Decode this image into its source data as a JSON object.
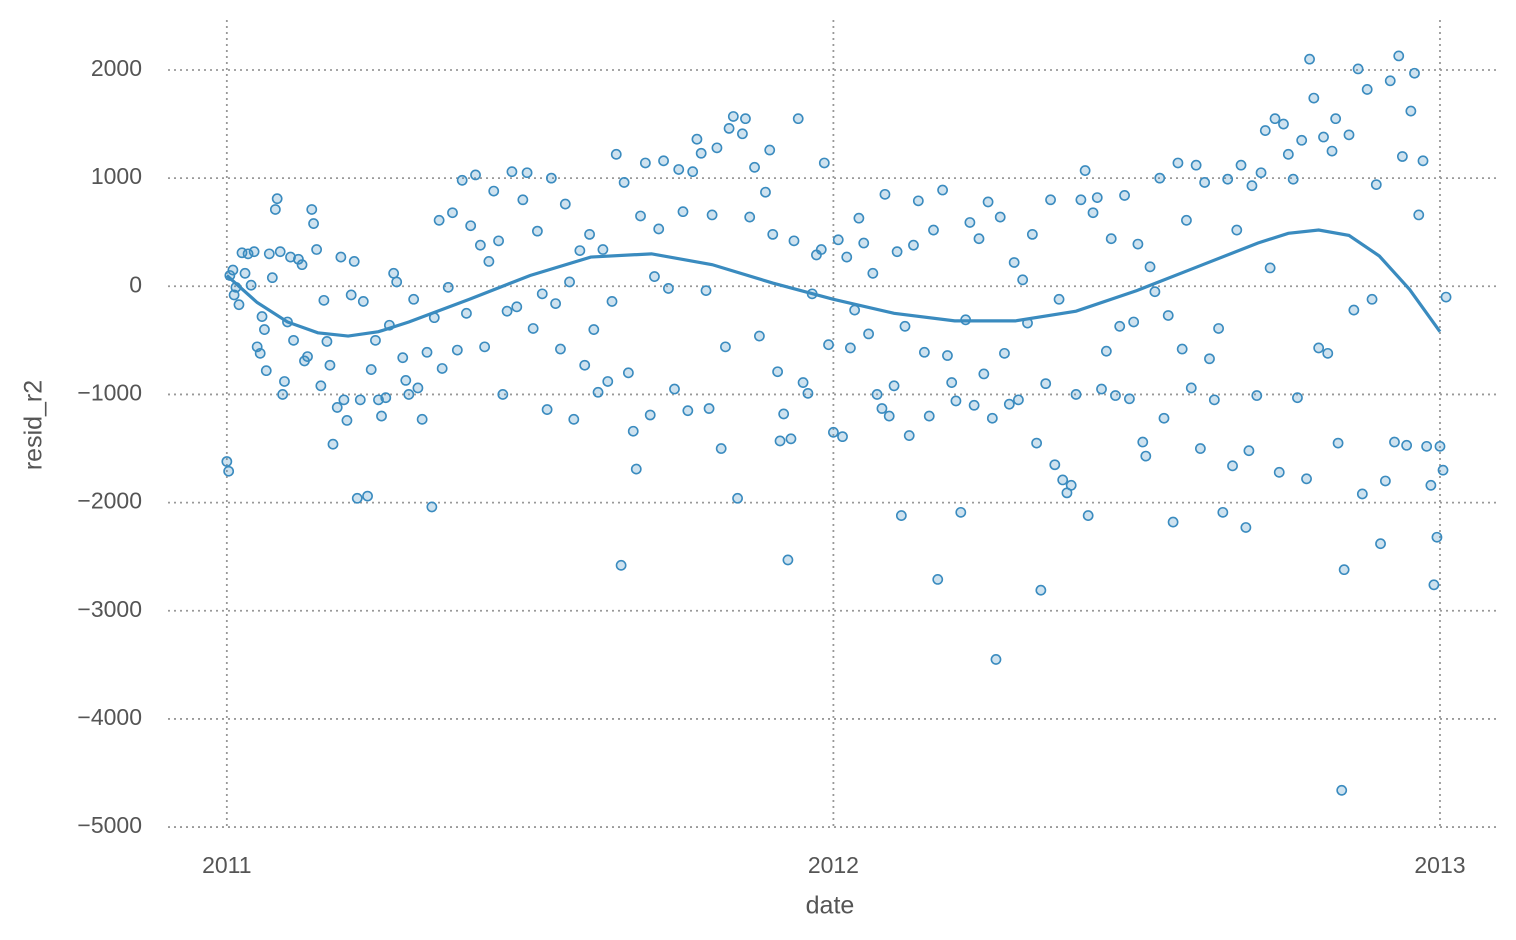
{
  "chart_data": {
    "type": "scatter",
    "x_label": "date",
    "y_label": "resid_r2",
    "xlim": [
      2010.903,
      2013.094
    ],
    "ylim": [
      -5027,
      2462
    ],
    "xticks": [
      2011,
      2012,
      2013
    ],
    "yticks": [
      {
        "value": -5000,
        "label": "−5000"
      },
      {
        "value": -4000,
        "label": "−4000"
      },
      {
        "value": -3000,
        "label": "−3000"
      },
      {
        "value": -2000,
        "label": "−2000"
      },
      {
        "value": -1000,
        "label": "−1000"
      },
      0,
      1000,
      2000
    ],
    "grid": true,
    "series": [
      {
        "type": "scatter",
        "color": "#3a8bbf",
        "x": [
          2011.0,
          2011.003,
          2011.005,
          2011.01,
          2011.012,
          2011.015,
          2011.02,
          2011.025,
          2011.03,
          2011.035,
          2011.04,
          2011.045,
          2011.05,
          2011.055,
          2011.058,
          2011.062,
          2011.065,
          2011.07,
          2011.075,
          2011.08,
          2011.083,
          2011.088,
          2011.092,
          2011.095,
          2011.1,
          2011.105,
          2011.11,
          2011.118,
          2011.124,
          2011.128,
          2011.133,
          2011.14,
          2011.143,
          2011.148,
          2011.155,
          2011.16,
          2011.165,
          2011.17,
          2011.175,
          2011.182,
          2011.188,
          2011.193,
          2011.198,
          2011.205,
          2011.21,
          2011.215,
          2011.22,
          2011.225,
          2011.232,
          2011.238,
          2011.245,
          2011.25,
          2011.255,
          2011.262,
          2011.268,
          2011.275,
          2011.28,
          2011.29,
          2011.295,
          2011.3,
          2011.308,
          2011.315,
          2011.322,
          2011.33,
          2011.338,
          2011.342,
          2011.35,
          2011.355,
          2011.365,
          2011.372,
          2011.38,
          2011.388,
          2011.395,
          2011.402,
          2011.41,
          2011.418,
          2011.425,
          2011.432,
          2011.44,
          2011.448,
          2011.455,
          2011.462,
          2011.47,
          2011.478,
          2011.488,
          2011.495,
          2011.505,
          2011.512,
          2011.52,
          2011.528,
          2011.535,
          2011.542,
          2011.55,
          2011.558,
          2011.565,
          2011.572,
          2011.582,
          2011.59,
          2011.598,
          2011.605,
          2011.612,
          2011.62,
          2011.628,
          2011.635,
          2011.642,
          2011.65,
          2011.655,
          2011.662,
          2011.67,
          2011.675,
          2011.682,
          2011.69,
          2011.698,
          2011.705,
          2011.712,
          2011.72,
          2011.728,
          2011.738,
          2011.745,
          2011.752,
          2011.76,
          2011.768,
          2011.775,
          2011.782,
          2011.79,
          2011.795,
          2011.8,
          2011.808,
          2011.815,
          2011.822,
          2011.828,
          2011.835,
          2011.842,
          2011.85,
          2011.855,
          2011.862,
          2011.87,
          2011.878,
          2011.888,
          2011.895,
          2011.9,
          2011.908,
          2011.912,
          2011.918,
          2011.925,
          2011.93,
          2011.935,
          2011.942,
          2011.95,
          2011.958,
          2011.965,
          2011.972,
          2011.98,
          2011.985,
          2011.992,
          2012.0,
          2012.008,
          2012.015,
          2012.022,
          2012.028,
          2012.035,
          2012.042,
          2012.05,
          2012.058,
          2012.065,
          2012.072,
          2012.08,
          2012.085,
          2012.092,
          2012.1,
          2012.105,
          2012.112,
          2012.118,
          2012.125,
          2012.132,
          2012.14,
          2012.15,
          2012.158,
          2012.165,
          2012.172,
          2012.18,
          2012.188,
          2012.195,
          2012.202,
          2012.21,
          2012.218,
          2012.225,
          2012.232,
          2012.24,
          2012.248,
          2012.255,
          2012.262,
          2012.268,
          2012.275,
          2012.282,
          2012.29,
          2012.298,
          2012.305,
          2012.312,
          2012.32,
          2012.328,
          2012.335,
          2012.342,
          2012.35,
          2012.358,
          2012.365,
          2012.372,
          2012.378,
          2012.385,
          2012.392,
          2012.4,
          2012.408,
          2012.415,
          2012.42,
          2012.428,
          2012.435,
          2012.442,
          2012.45,
          2012.458,
          2012.465,
          2012.472,
          2012.48,
          2012.488,
          2012.495,
          2012.502,
          2012.51,
          2012.515,
          2012.522,
          2012.53,
          2012.538,
          2012.545,
          2012.552,
          2012.56,
          2012.568,
          2012.575,
          2012.582,
          2012.59,
          2012.598,
          2012.605,
          2012.612,
          2012.62,
          2012.628,
          2012.635,
          2012.642,
          2012.65,
          2012.658,
          2012.665,
          2012.672,
          2012.68,
          2012.685,
          2012.69,
          2012.698,
          2012.705,
          2012.712,
          2012.72,
          2012.728,
          2012.735,
          2012.742,
          2012.75,
          2012.758,
          2012.765,
          2012.772,
          2012.78,
          2012.785,
          2012.792,
          2012.8,
          2012.808,
          2012.815,
          2012.822,
          2012.828,
          2012.832,
          2012.838,
          2012.842,
          2012.85,
          2012.858,
          2012.865,
          2012.872,
          2012.88,
          2012.888,
          2012.895,
          2012.902,
          2012.91,
          2012.918,
          2012.925,
          2012.932,
          2012.938,
          2012.945,
          2012.952,
          2012.958,
          2012.965,
          2012.972,
          2012.978,
          2012.985,
          2012.99,
          2012.995,
          2013.0,
          2013.005,
          2013.01
        ],
        "values": [
          -1620,
          -1710,
          100,
          150,
          -80,
          -10,
          -170,
          310,
          120,
          300,
          10,
          320,
          -560,
          -620,
          -280,
          -400,
          -780,
          300,
          80,
          710,
          810,
          320,
          -1000,
          -880,
          -330,
          270,
          -500,
          250,
          200,
          -690,
          -650,
          710,
          580,
          340,
          -920,
          -130,
          -510,
          -730,
          -1460,
          -1120,
          270,
          -1050,
          -1240,
          -80,
          230,
          -1960,
          -1050,
          -140,
          -1940,
          -770,
          -500,
          -1050,
          -1200,
          -1030,
          -360,
          120,
          40,
          -660,
          -870,
          -1000,
          -120,
          -940,
          -1230,
          -610,
          -2040,
          -290,
          610,
          -760,
          -10,
          680,
          -590,
          980,
          -250,
          560,
          1030,
          380,
          -560,
          230,
          880,
          420,
          -1000,
          -230,
          1060,
          -190,
          800,
          1050,
          -390,
          510,
          -70,
          -1140,
          1000,
          -160,
          -580,
          760,
          40,
          -1230,
          330,
          -730,
          480,
          -400,
          -980,
          340,
          -880,
          -140,
          1220,
          -2580,
          960,
          -800,
          -1340,
          -1690,
          650,
          1140,
          -1190,
          90,
          530,
          1160,
          -20,
          -950,
          1080,
          690,
          -1150,
          1060,
          1360,
          1230,
          -40,
          -1130,
          660,
          1280,
          -1500,
          -560,
          1460,
          1570,
          -1960,
          1410,
          1550,
          640,
          1100,
          -460,
          870,
          1260,
          480,
          -790,
          -1430,
          -1180,
          -2530,
          -1410,
          420,
          1550,
          -890,
          -990,
          -70,
          290,
          340,
          1140,
          -540,
          -1350,
          430,
          -1390,
          270,
          -570,
          -220,
          630,
          400,
          -440,
          120,
          -1000,
          -1130,
          850,
          -1200,
          -920,
          320,
          -2120,
          -370,
          -1380,
          380,
          790,
          -610,
          -1200,
          520,
          -2710,
          890,
          -640,
          -890,
          -1060,
          -2090,
          -310,
          590,
          -1100,
          440,
          -810,
          780,
          -1220,
          -3450,
          640,
          -620,
          -1090,
          220,
          -1050,
          60,
          -340,
          480,
          -1450,
          -2810,
          -900,
          800,
          -1650,
          -120,
          -1790,
          -1910,
          -1840,
          -1000,
          800,
          1070,
          -2120,
          680,
          820,
          -950,
          -600,
          440,
          -1010,
          -370,
          840,
          -1040,
          -330,
          390,
          -1440,
          -1570,
          180,
          -50,
          1000,
          -1220,
          -270,
          -2180,
          1140,
          -580,
          610,
          -940,
          1120,
          -1500,
          960,
          -670,
          -1050,
          -390,
          -2090,
          990,
          -1660,
          520,
          1120,
          -2230,
          -1520,
          930,
          -1010,
          1050,
          1440,
          170,
          1550,
          -1720,
          1500,
          1220,
          990,
          -1030,
          1350,
          -1780,
          2100,
          1740,
          -570,
          1380,
          -620,
          1250,
          1550,
          -1450,
          -4660,
          -2620,
          1400,
          -220,
          2010,
          -1920,
          1820,
          -120,
          940,
          -2380,
          -1800,
          1900,
          -1440,
          2130,
          1200,
          -1470,
          1620,
          1970,
          660,
          1160,
          -1480,
          -1840,
          -2760,
          -2320,
          -1480,
          -1700,
          -100
        ]
      },
      {
        "type": "line",
        "color": "#3a8bbf",
        "x": [
          2011.0,
          2011.05,
          2011.1,
          2011.15,
          2011.2,
          2011.25,
          2011.3,
          2011.4,
          2011.5,
          2011.6,
          2011.7,
          2011.8,
          2011.9,
          2012.0,
          2012.1,
          2012.2,
          2012.3,
          2012.4,
          2012.5,
          2012.6,
          2012.7,
          2012.75,
          2012.8,
          2012.85,
          2012.9,
          2012.95,
          2013.0
        ],
        "values": [
          100,
          -150,
          -330,
          -430,
          -460,
          -420,
          -330,
          -120,
          100,
          270,
          300,
          200,
          30,
          -120,
          -250,
          -320,
          -320,
          -230,
          -40,
          180,
          400,
          490,
          520,
          470,
          280,
          -30,
          -420
        ]
      }
    ]
  }
}
